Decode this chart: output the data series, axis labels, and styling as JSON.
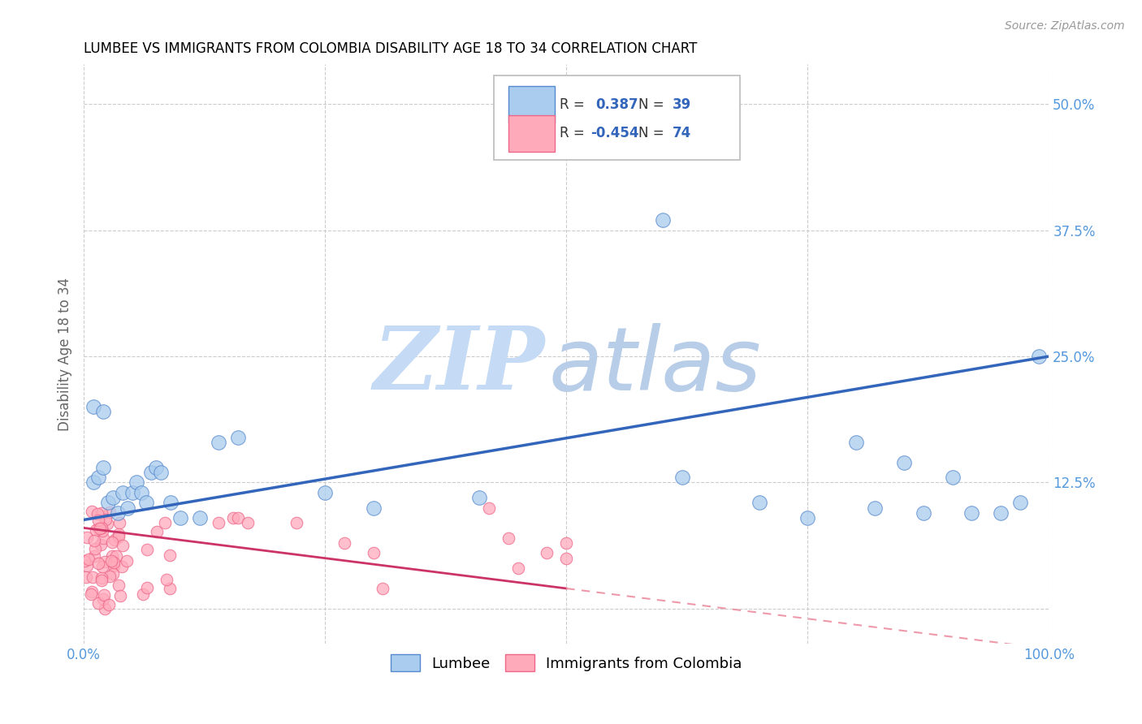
{
  "title": "LUMBEE VS IMMIGRANTS FROM COLOMBIA DISABILITY AGE 18 TO 34 CORRELATION CHART",
  "source": "Source: ZipAtlas.com",
  "ylabel": "Disability Age 18 to 34",
  "xlim": [
    0.0,
    1.0
  ],
  "ylim": [
    -0.035,
    0.54
  ],
  "xticks": [
    0.0,
    0.25,
    0.5,
    0.75,
    1.0
  ],
  "xticklabels": [
    "0.0%",
    "",
    "",
    "",
    "100.0%"
  ],
  "yticks": [
    0.0,
    0.125,
    0.25,
    0.375,
    0.5
  ],
  "yticklabels": [
    "",
    "12.5%",
    "25.0%",
    "37.5%",
    "50.0%"
  ],
  "lumbee_fill_color": "#aaccee",
  "lumbee_edge_color": "#5588cc",
  "colombia_fill_color": "#ffaabb",
  "colombia_edge_color": "#ee6688",
  "lumbee_line_color": "#3366bb",
  "colombia_line_solid_color": "#cc3366",
  "colombia_line_dash_color": "#ee99aa",
  "R_lumbee": "0.387",
  "N_lumbee": "39",
  "R_colombia": "-0.454",
  "N_colombia": "74",
  "background_color": "#ffffff",
  "grid_color": "#cccccc",
  "tick_color": "#5599dd",
  "title_fontsize": 12,
  "tick_fontsize": 12,
  "ylabel_fontsize": 12,
  "watermark_zip_color": "#c5daf5",
  "watermark_atlas_color": "#b8cde8"
}
